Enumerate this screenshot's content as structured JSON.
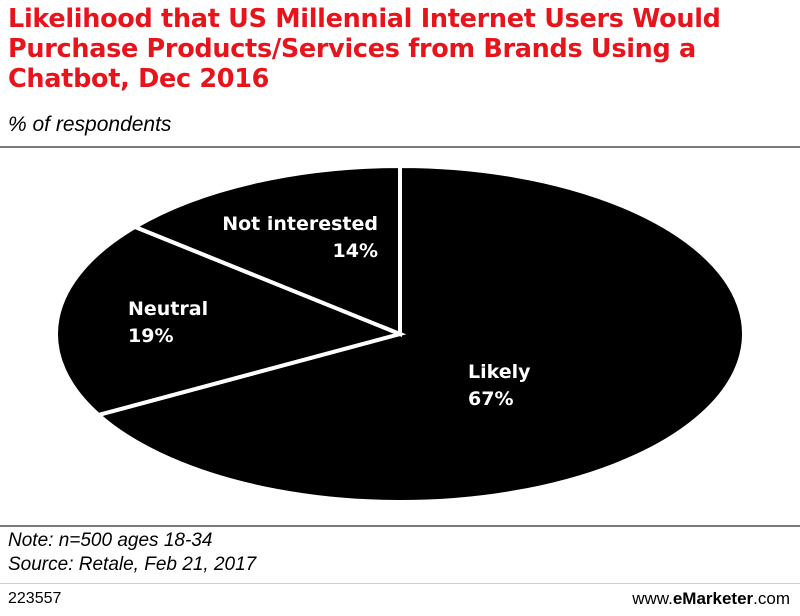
{
  "chart_data": {
    "type": "pie",
    "title": "Likelihood that US Millennial Internet Users Would Purchase Products/Services from Brands Using a Chatbot, Dec 2016",
    "subtitle": "% of respondents",
    "slices": [
      {
        "label": "Likely",
        "value": 67,
        "display": "67%"
      },
      {
        "label": "Neutral",
        "value": 19,
        "display": "19%"
      },
      {
        "label": "Not interested",
        "value": 14,
        "display": "14%"
      }
    ],
    "colors": {
      "slice_fill": "#000000",
      "separator": "#ffffff",
      "label": "#ffffff"
    }
  },
  "footer": {
    "note": "Note: n=500 ages 18-34",
    "source": "Source: Retale, Feb 21, 2017",
    "chart_id": "223557",
    "brand_prefix": "www.",
    "brand_name": "eMarketer",
    "brand_suffix": ".com"
  },
  "colors": {
    "title": "#e8141b"
  }
}
